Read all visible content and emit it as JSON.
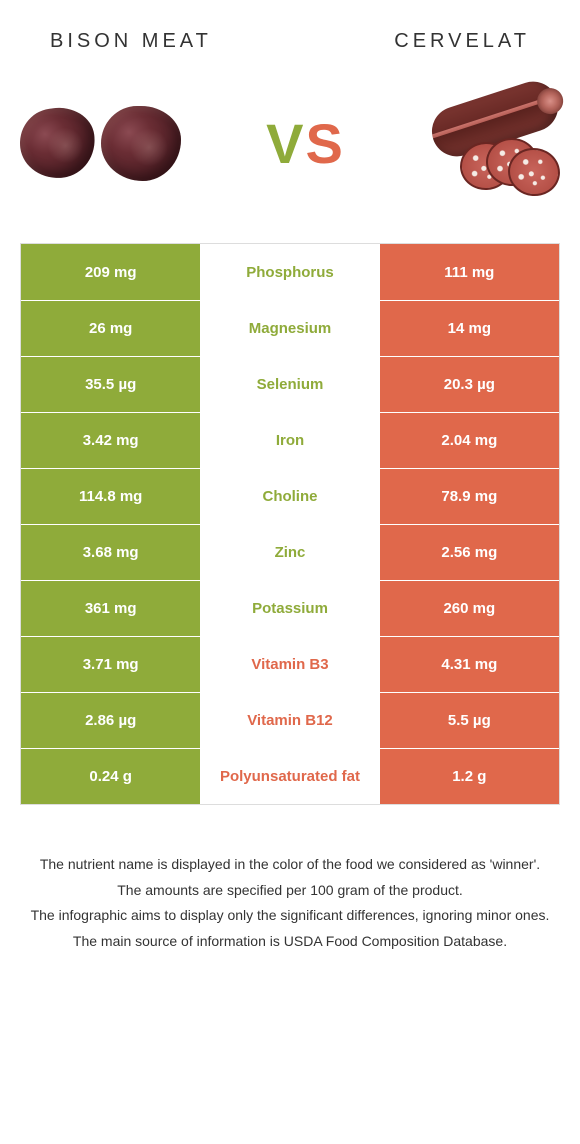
{
  "colors": {
    "food1": "#8fab3a",
    "food2": "#e0684b",
    "neutral": "#f6f6f6"
  },
  "header": {
    "food1": "BISON MEAT",
    "food2": "CERVELAT",
    "vs_v": "V",
    "vs_s": "S"
  },
  "rows": [
    {
      "nutrient": "Phosphorus",
      "left": "209 mg",
      "right": "111 mg",
      "winner": "food1"
    },
    {
      "nutrient": "Magnesium",
      "left": "26 mg",
      "right": "14 mg",
      "winner": "food1"
    },
    {
      "nutrient": "Selenium",
      "left": "35.5 µg",
      "right": "20.3 µg",
      "winner": "food1"
    },
    {
      "nutrient": "Iron",
      "left": "3.42 mg",
      "right": "2.04 mg",
      "winner": "food1"
    },
    {
      "nutrient": "Choline",
      "left": "114.8 mg",
      "right": "78.9 mg",
      "winner": "food1"
    },
    {
      "nutrient": "Zinc",
      "left": "3.68 mg",
      "right": "2.56 mg",
      "winner": "food1"
    },
    {
      "nutrient": "Potassium",
      "left": "361 mg",
      "right": "260 mg",
      "winner": "food1"
    },
    {
      "nutrient": "Vitamin B3",
      "left": "3.71 mg",
      "right": "4.31 mg",
      "winner": "food2"
    },
    {
      "nutrient": "Vitamin B12",
      "left": "2.86 µg",
      "right": "5.5 µg",
      "winner": "food2"
    },
    {
      "nutrient": "Polyunsaturated fat",
      "left": "0.24 g",
      "right": "1.2 g",
      "winner": "food2"
    }
  ],
  "footer": {
    "line1": "The nutrient name is displayed in the color of the food we considered as 'winner'.",
    "line2": "The amounts are specified per 100 gram of the product.",
    "line3": "The infographic aims to display only the significant differences, ignoring minor ones.",
    "line4": "The main source of information is USDA Food Composition Database."
  }
}
